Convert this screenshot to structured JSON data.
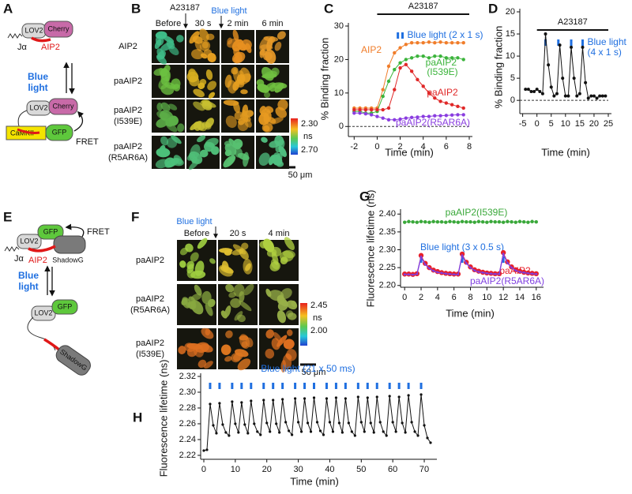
{
  "figure_labels": [
    "A",
    "B",
    "C",
    "D",
    "E",
    "F",
    "G",
    "H"
  ],
  "diagram_A": {
    "lov2": "LOV2",
    "cherry": "Cherry",
    "ja": "Jα",
    "aip2": "AIP2",
    "light": [
      "Blue",
      "light"
    ],
    "camkii": "CaMKII",
    "gfp": "GFP",
    "fret": "FRET"
  },
  "diagram_E": {
    "lov2": "LOV2",
    "gfp": "GFP",
    "fret": "FRET",
    "ja": "Jα",
    "aip2": "AIP2",
    "shadowg": "ShadowG",
    "light": [
      "Blue",
      "light"
    ]
  },
  "images_B": {
    "stimuli": [
      "A23187",
      "Blue light"
    ],
    "columns": [
      "Before",
      "30 s",
      "2 min",
      "6 min"
    ],
    "rows": [
      [
        "AIP2"
      ],
      [
        "paAIP2"
      ],
      [
        "paAIP2",
        "(I539E)"
      ],
      [
        "paAIP2",
        "(R5AR6A)"
      ]
    ],
    "colorbar": {
      "top": "2.30",
      "unit": "ns",
      "bottom": "2.70"
    },
    "scale_bar": "50 μm"
  },
  "images_F": {
    "stimuli": [
      "Blue light"
    ],
    "columns": [
      "Before",
      "20 s",
      "4 min"
    ],
    "rows": [
      [
        "paAIP2"
      ],
      [
        "paAIP2",
        "(R5AR6A)"
      ],
      [
        "paAIP2",
        "(I539E)"
      ]
    ],
    "colorbar": {
      "top": "2.45",
      "unit": "ns",
      "bottom": "2.00"
    },
    "scale_bar": "50 μm"
  },
  "chart_data": [
    {
      "type": "line",
      "xlabel": "Time (min)",
      "ylabel": "% Binding fraction",
      "xlim": [
        -2.5,
        8
      ],
      "ylim": [
        -3,
        30
      ],
      "xticks": [
        -2,
        0,
        2,
        4,
        6,
        8
      ],
      "yticks": [
        0,
        10,
        20,
        30
      ],
      "hline": 0,
      "treatment": {
        "label": "A23187",
        "start": 0,
        "end": 8
      },
      "stimulus": {
        "label": "Blue light (2 x 1 s)",
        "times": [
          1.8,
          2.2
        ]
      },
      "x": [
        -2,
        -1.5,
        -1,
        -0.5,
        0,
        0.5,
        1,
        1.5,
        2,
        2.5,
        3,
        3.5,
        4,
        4.5,
        5,
        5.5,
        6,
        6.5,
        7,
        7.5
      ],
      "series": [
        {
          "name": "AIP2",
          "color": "#f07d2a",
          "values": [
            5.5,
            5.5,
            5.5,
            5.5,
            5.5,
            11,
            18,
            22,
            23.5,
            24.5,
            25,
            25,
            25,
            25.2,
            25,
            25.2,
            25,
            25,
            25,
            25
          ]
        },
        {
          "name": "paAIP2\n(I539E)",
          "color": "#3cb43c",
          "values": [
            4.5,
            4.5,
            4,
            4,
            4.5,
            9,
            13.5,
            17,
            19,
            20,
            20.5,
            21,
            21,
            20.5,
            21,
            21,
            20.5,
            20.5,
            20.5,
            20
          ]
        },
        {
          "name": "paAIP2",
          "color": "#e02828",
          "values": [
            5,
            5,
            5,
            5,
            5,
            5,
            5.5,
            11,
            17.5,
            18.5,
            16.5,
            14,
            12,
            10,
            8.5,
            7.5,
            7,
            6.5,
            6,
            5.5
          ]
        },
        {
          "name": "paAIP2(R5AR6A)",
          "color": "#8a3de0",
          "values": [
            4,
            4,
            3.8,
            3.5,
            3,
            2.5,
            2,
            2,
            2.2,
            2.5,
            2.7,
            2.8,
            3,
            3,
            3.2,
            3.2,
            3.3,
            3.4,
            3.5,
            3.5
          ]
        }
      ]
    },
    {
      "type": "line",
      "xlabel": "Time (min)",
      "ylabel": "% Binding fraction",
      "xlim": [
        -6,
        25
      ],
      "ylim": [
        -3,
        20
      ],
      "xticks": [
        -5,
        0,
        5,
        10,
        15,
        20,
        25
      ],
      "yticks": [
        0,
        5,
        10,
        15,
        20
      ],
      "hline": 0,
      "treatment": {
        "label": "A23187",
        "start": 0,
        "end": 25
      },
      "stimulus": {
        "label": "Blue light\n(4 x 1 s)",
        "times": [
          3,
          7.5,
          12,
          16
        ]
      },
      "color": "#111111",
      "x": [
        -4,
        -3,
        -2,
        -1,
        0,
        1,
        2,
        3,
        4,
        5,
        6,
        7,
        8,
        9,
        10,
        11,
        12,
        13,
        14,
        15,
        16,
        17,
        18,
        19,
        20,
        21,
        22,
        23,
        24
      ],
      "values": [
        2.5,
        2.5,
        2,
        2,
        2.5,
        2,
        1.5,
        15,
        8,
        3,
        1,
        1.5,
        12.5,
        5,
        1,
        1,
        12,
        5,
        1,
        1.5,
        12,
        4,
        0.5,
        1,
        1,
        0.5,
        1,
        1,
        1
      ]
    },
    {
      "type": "line",
      "xlabel": "Time (min)",
      "ylabel": "Fluorescence lifetime (ns)",
      "xlim": [
        -0.5,
        16.5
      ],
      "ylim": [
        2.195,
        2.405
      ],
      "xticks": [
        0,
        2,
        4,
        6,
        8,
        10,
        12,
        14,
        16
      ],
      "yticks": [
        {
          "value": 2.2,
          "label": "2.20"
        },
        2.25,
        {
          "value": 2.3,
          "label": "2.30"
        },
        2.35,
        {
          "value": 2.4,
          "label": "2.40"
        }
      ],
      "stimulus": {
        "label": "Blue light (3 x 0.5 s)",
        "times": [
          2,
          7,
          12
        ]
      },
      "x": [
        0,
        0.5,
        1,
        1.5,
        2,
        2.5,
        3,
        3.5,
        4,
        4.5,
        5,
        5.5,
        6,
        6.5,
        7,
        7.5,
        8,
        8.5,
        9,
        9.5,
        10,
        10.5,
        11,
        11.5,
        12,
        12.5,
        13,
        13.5,
        14,
        14.5,
        15,
        15.5,
        16
      ],
      "series": [
        {
          "name": "paAIP2(I539E)",
          "color": "#3aa83a",
          "values": [
            2.377,
            2.379,
            2.378,
            2.377,
            2.379,
            2.378,
            2.377,
            2.379,
            2.378,
            2.378,
            2.377,
            2.379,
            2.378,
            2.377,
            2.379,
            2.378,
            2.378,
            2.377,
            2.379,
            2.378,
            2.377,
            2.379,
            2.378,
            2.378,
            2.377,
            2.379,
            2.378,
            2.377,
            2.379,
            2.378,
            2.377,
            2.379,
            2.378
          ]
        },
        {
          "name": "paAIP2",
          "color": "#e8202a",
          "values": [
            2.232,
            2.232,
            2.231,
            2.233,
            2.284,
            2.262,
            2.25,
            2.243,
            2.239,
            2.236,
            2.234,
            2.233,
            2.232,
            2.232,
            2.288,
            2.265,
            2.252,
            2.244,
            2.24,
            2.237,
            2.235,
            2.234,
            2.233,
            2.233,
            2.292,
            2.266,
            2.252,
            2.244,
            2.24,
            2.237,
            2.235,
            2.234,
            2.233
          ]
        },
        {
          "name": "paAIP2(R5AR6A)",
          "color": "#7f3fe0",
          "values": [
            2.231,
            2.231,
            2.23,
            2.232,
            2.28,
            2.259,
            2.248,
            2.241,
            2.237,
            2.235,
            2.233,
            2.232,
            2.231,
            2.231,
            2.284,
            2.262,
            2.25,
            2.242,
            2.238,
            2.236,
            2.234,
            2.233,
            2.232,
            2.232,
            2.288,
            2.263,
            2.25,
            2.242,
            2.238,
            2.236,
            2.234,
            2.233,
            2.232
          ]
        }
      ]
    },
    {
      "type": "line",
      "xlabel": "Time (min)",
      "ylabel": "Fluorescence lifetime (ns)",
      "xlim": [
        -1,
        73
      ],
      "ylim": [
        2.215,
        2.32
      ],
      "xticks": [
        0,
        10,
        20,
        30,
        40,
        50,
        60,
        70
      ],
      "yticks": [
        2.22,
        2.24,
        2.26,
        2.28,
        {
          "value": 2.3,
          "label": "2.30"
        },
        2.32
      ],
      "stimulus": {
        "label": "Blue light (21 x 50 ms)",
        "times": [
          2,
          5,
          9,
          12,
          15,
          19,
          22,
          25,
          29,
          32,
          35,
          39,
          42,
          45,
          49,
          52,
          55,
          59,
          62,
          65,
          69
        ]
      },
      "color": "#111111",
      "x": [
        0,
        1,
        2,
        3,
        4,
        5,
        6,
        7,
        8,
        9,
        10,
        11,
        12,
        13,
        14,
        15,
        16,
        17,
        18,
        19,
        20,
        21,
        22,
        23,
        24,
        25,
        26,
        27,
        28,
        29,
        30,
        31,
        32,
        33,
        34,
        35,
        36,
        37,
        38,
        39,
        40,
        41,
        42,
        43,
        44,
        45,
        46,
        47,
        48,
        49,
        50,
        51,
        52,
        53,
        54,
        55,
        56,
        57,
        58,
        59,
        60,
        61,
        62,
        63,
        64,
        65,
        66,
        67,
        68,
        69,
        70,
        71,
        72
      ],
      "values": [
        2.226,
        2.227,
        2.285,
        2.258,
        2.248,
        2.286,
        2.259,
        2.249,
        2.245,
        2.288,
        2.26,
        2.249,
        2.287,
        2.259,
        2.248,
        2.289,
        2.26,
        2.25,
        2.246,
        2.29,
        2.261,
        2.25,
        2.29,
        2.26,
        2.249,
        2.291,
        2.262,
        2.251,
        2.246,
        2.292,
        2.262,
        2.25,
        2.292,
        2.261,
        2.25,
        2.293,
        2.262,
        2.251,
        2.246,
        2.292,
        2.262,
        2.25,
        2.293,
        2.261,
        2.249,
        2.292,
        2.261,
        2.25,
        2.245,
        2.294,
        2.262,
        2.25,
        2.293,
        2.261,
        2.249,
        2.294,
        2.262,
        2.25,
        2.245,
        2.295,
        2.262,
        2.25,
        2.294,
        2.261,
        2.249,
        2.296,
        2.262,
        2.25,
        2.245,
        2.297,
        2.258,
        2.242,
        2.236
      ]
    }
  ]
}
